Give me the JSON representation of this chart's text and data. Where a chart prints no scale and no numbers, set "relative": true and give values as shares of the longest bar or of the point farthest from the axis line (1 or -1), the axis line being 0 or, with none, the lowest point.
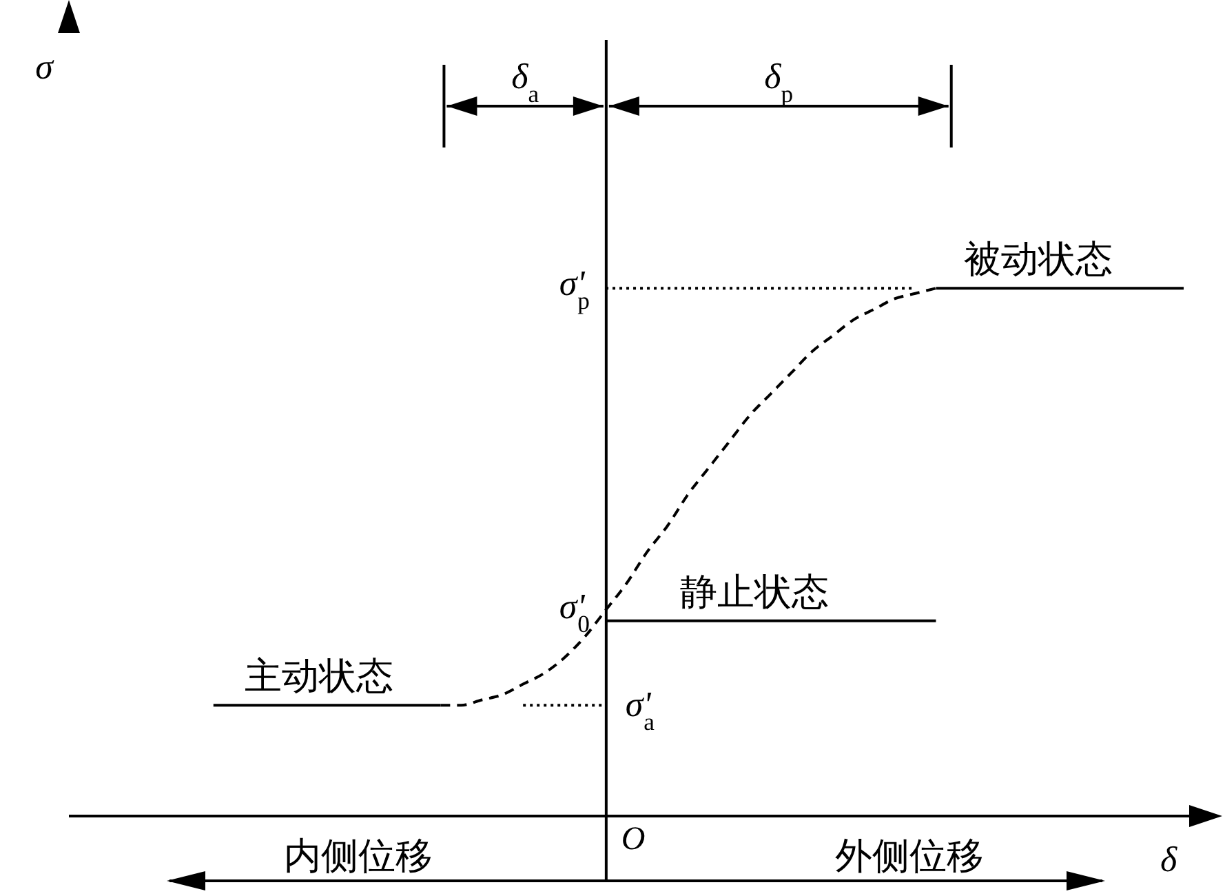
{
  "chart_data": {
    "type": "line",
    "relative": true,
    "xlabel": "δ",
    "categories": [
      null,
      null,
      null,
      null,
      null,
      null,
      null,
      null,
      null,
      null,
      null,
      null,
      null,
      null,
      null,
      null,
      null,
      null,
      null,
      null,
      null,
      null,
      null,
      null,
      null,
      null,
      null,
      null,
      null,
      null,
      null,
      null,
      null,
      null,
      null,
      null,
      null,
      null,
      null,
      null,
      null,
      null,
      null,
      null,
      null,
      null,
      null,
      null,
      null,
      null,
      null,
      null,
      null,
      null,
      null,
      null
    ],
    "series": [
      {
        "name": "主动状态",
        "color": "#000000",
        "line_style": "solid",
        "values": [
          null,
          null,
          null,
          null,
          null,
          null,
          null,
          0.21,
          0.21,
          0.21,
          0.21,
          0.21,
          0.21,
          0.21,
          0.21,
          0.21,
          0.21,
          0.21,
          0.21,
          null,
          null,
          null,
          null,
          null,
          null,
          null,
          null,
          null,
          null,
          null,
          null,
          null,
          null,
          null,
          null,
          null,
          null,
          null,
          null,
          null,
          null,
          null,
          null,
          null,
          null,
          null,
          null,
          null,
          null,
          null,
          null,
          null,
          null,
          null,
          null,
          null
        ]
      },
      {
        "color": "#000000",
        "line_style": "dashed",
        "values": [
          null,
          null,
          null,
          null,
          null,
          null,
          null,
          null,
          null,
          null,
          null,
          null,
          null,
          null,
          null,
          null,
          null,
          null,
          0.21,
          0.21,
          0.22,
          0.23,
          0.25,
          0.27,
          0.3,
          0.34,
          0.39,
          0.44,
          0.5,
          0.55,
          0.61,
          0.66,
          0.71,
          0.76,
          0.8,
          0.84,
          0.88,
          0.91,
          0.94,
          0.96,
          0.98,
          0.99,
          1.0,
          null,
          null,
          null,
          null,
          null,
          null,
          null,
          null,
          null,
          null,
          null,
          null,
          null
        ]
      },
      {
        "color": "#000000",
        "line_style": "dotted",
        "values": [
          null,
          null,
          null,
          null,
          null,
          null,
          null,
          null,
          null,
          null,
          null,
          null,
          null,
          null,
          null,
          null,
          null,
          null,
          null,
          null,
          null,
          null,
          0.21,
          0.21,
          0.21,
          0.21,
          0.21,
          null,
          null,
          null,
          null,
          null,
          null,
          null,
          null,
          null,
          null,
          null,
          null,
          null,
          null,
          null,
          null,
          null,
          null,
          null,
          null,
          null,
          null,
          null,
          null,
          null,
          null,
          null,
          null,
          null
        ]
      },
      {
        "name": "静止状态",
        "color": "#000000",
        "line_style": "solid",
        "values": [
          null,
          null,
          null,
          null,
          null,
          null,
          null,
          null,
          null,
          null,
          null,
          null,
          null,
          null,
          null,
          null,
          null,
          null,
          null,
          null,
          null,
          null,
          null,
          null,
          null,
          null,
          0.37,
          0.37,
          0.37,
          0.37,
          0.37,
          0.37,
          0.37,
          0.37,
          0.37,
          0.37,
          0.37,
          0.37,
          0.37,
          0.37,
          0.37,
          0.37,
          0.37,
          null,
          null,
          null,
          null,
          null,
          null,
          null,
          null,
          null,
          null,
          null,
          null,
          null
        ]
      },
      {
        "color": "#000000",
        "line_style": "dotted",
        "values": [
          null,
          null,
          null,
          null,
          null,
          null,
          null,
          null,
          null,
          null,
          null,
          null,
          null,
          null,
          null,
          null,
          null,
          null,
          null,
          null,
          null,
          null,
          null,
          null,
          null,
          null,
          1,
          1,
          1,
          1,
          1,
          1,
          1,
          1,
          1,
          1,
          1,
          1,
          1,
          1,
          1,
          1,
          null,
          null,
          null,
          null,
          null,
          null,
          null,
          null,
          null,
          null,
          null,
          null,
          null,
          null
        ]
      },
      {
        "name": "被动状态",
        "color": "#000000",
        "line_style": "solid",
        "values": [
          null,
          null,
          null,
          null,
          null,
          null,
          null,
          null,
          null,
          null,
          null,
          null,
          null,
          null,
          null,
          null,
          null,
          null,
          null,
          null,
          null,
          null,
          null,
          null,
          null,
          null,
          null,
          null,
          null,
          null,
          null,
          null,
          null,
          null,
          null,
          null,
          null,
          null,
          null,
          null,
          null,
          null,
          1,
          1,
          1,
          1,
          1,
          1,
          1,
          1,
          1,
          1,
          1,
          1,
          1,
          null
        ]
      }
    ],
    "annotations": [
      "δ$_{a}$",
      "δ$_{p}$",
      "σ'$_{p}$",
      "σ'$_{0}$",
      "σ'$_{a}$",
      "O",
      "内侧位移",
      "外侧位移",
      "σ"
    ],
    "marker": "none"
  }
}
